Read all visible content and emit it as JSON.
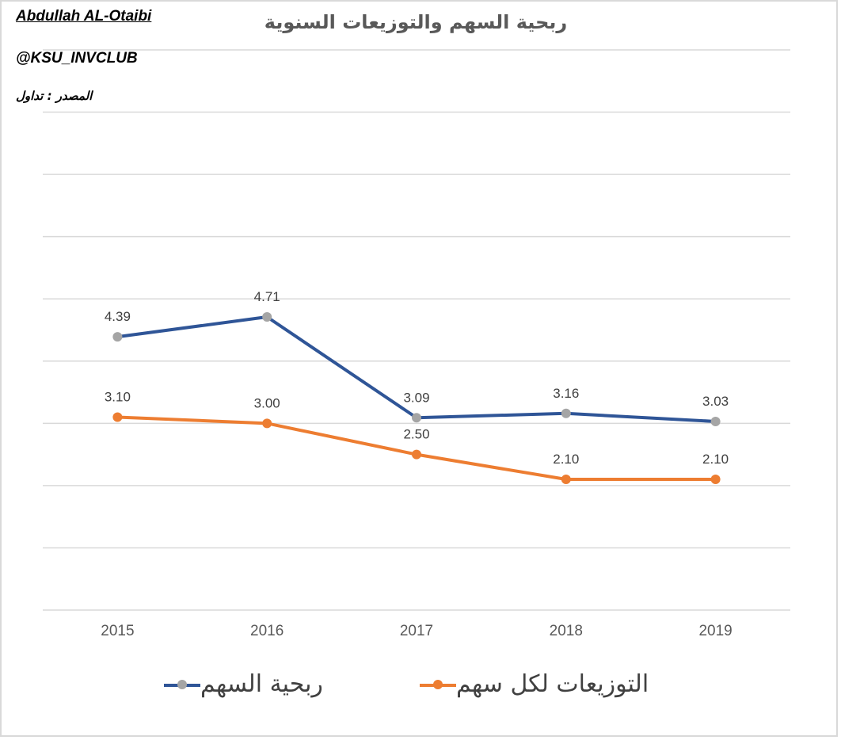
{
  "header": {
    "author": "Abdullah AL-Otaibi",
    "handle": "@KSU_INVCLUB",
    "source": "المصدر : تداول"
  },
  "colors": {
    "eps_line": "#2f5597",
    "eps_marker": "#a5a5a5",
    "dividend_line": "#ed7d31",
    "dividend_marker": "#ed7d31",
    "grid": "#d9d9d9",
    "label_text": "#404040",
    "axis_text": "#595959"
  },
  "chart_data": {
    "type": "line",
    "title": "ربحية السهم والتوزيعات السنوية",
    "xlabel": "",
    "ylabel": "",
    "categories": [
      "2015",
      "2016",
      "2017",
      "2018",
      "2019"
    ],
    "ylim": [
      0,
      9
    ],
    "grid": true,
    "y_tick_labels_shown": false,
    "legend_position": "bottom",
    "series": [
      {
        "name": "ربحية السهم",
        "values": [
          4.39,
          4.71,
          3.09,
          3.16,
          3.03
        ],
        "labels": [
          "4.39",
          "4.71",
          "3.09",
          "3.16",
          "3.03"
        ],
        "line_color": "#2f5597",
        "marker_color": "#a5a5a5"
      },
      {
        "name": "التوزيعات لكل سهم",
        "values": [
          3.1,
          3.0,
          2.5,
          2.1,
          2.1
        ],
        "labels": [
          "3.10",
          "3.00",
          "2.50",
          "2.10",
          "2.10"
        ],
        "line_color": "#ed7d31",
        "marker_color": "#ed7d31"
      }
    ]
  }
}
